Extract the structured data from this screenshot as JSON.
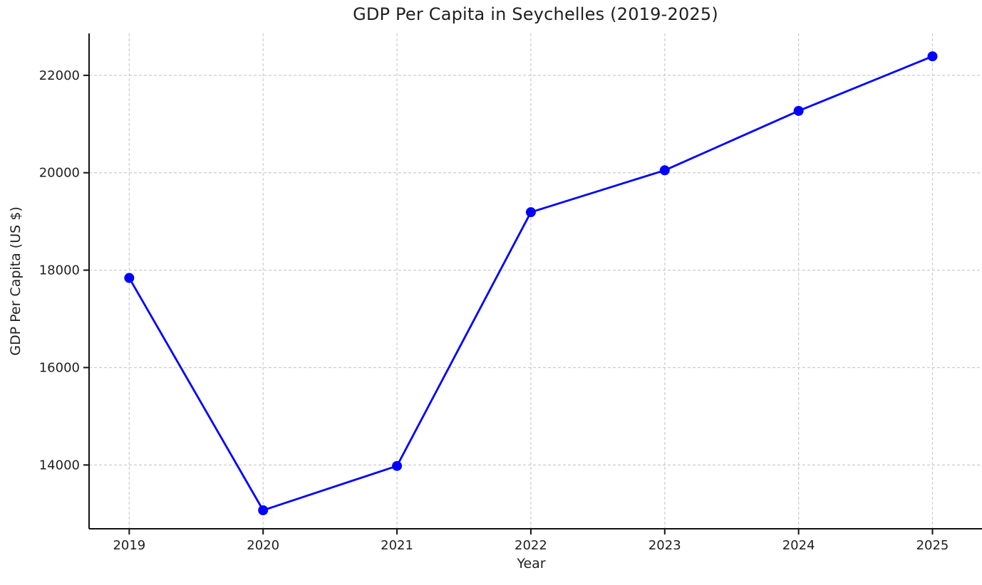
{
  "page": {
    "background_color": "#ffffff",
    "text_color": "#1f1f1f"
  },
  "chart_data": {
    "type": "line",
    "title": "GDP Per Capita in Seychelles (2019-2025)",
    "xlabel": "Year",
    "ylabel": "GDP Per Capita (US $)",
    "x": [
      2019,
      2020,
      2021,
      2022,
      2023,
      2024,
      2025
    ],
    "series": [
      {
        "name": "GDP Per Capita",
        "values": [
          17840,
          13070,
          13980,
          19190,
          20050,
          21270,
          22390
        ]
      }
    ],
    "xticks": [
      2019,
      2020,
      2021,
      2022,
      2023,
      2024,
      2025
    ],
    "yticks": [
      14000,
      16000,
      18000,
      20000,
      22000
    ],
    "xlim": [
      2018.7,
      2025.37
    ],
    "ylim": [
      12690,
      22860
    ],
    "grid": true,
    "grid_line_style": "dashed",
    "grid_color": "#cccccc",
    "legend_position": "none",
    "line_color": "#0000ff",
    "marker": "circle",
    "marker_color": "#0000ff",
    "spine_color": "#111111",
    "tick_label_color": "#1f1f1f",
    "tick_font_size": 18
  }
}
